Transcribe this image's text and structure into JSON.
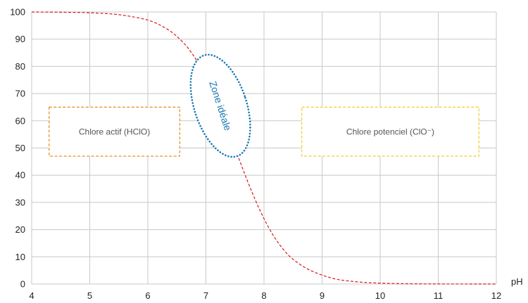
{
  "chart_data": {
    "type": "line",
    "xlabel": "pH",
    "ylabel": "",
    "xlim": [
      4,
      12
    ],
    "ylim": [
      0,
      100
    ],
    "x_ticks": [
      4,
      5,
      6,
      7,
      8,
      9,
      10,
      11,
      12
    ],
    "y_ticks": [
      0,
      10,
      20,
      30,
      40,
      50,
      60,
      70,
      80,
      90,
      100
    ],
    "grid": true,
    "series": [
      {
        "color": "#d7191c",
        "line_style": "dashed",
        "x": [
          4,
          4.5,
          5,
          5.5,
          6,
          6.3,
          6.5,
          6.7,
          6.9,
          7.1,
          7.3,
          7.5,
          7.7,
          7.9,
          8.1,
          8.3,
          8.5,
          8.8,
          9.2,
          9.6,
          10,
          10.5,
          11,
          11.5,
          12
        ],
        "values": [
          99.97,
          99.9,
          99.7,
          99.0,
          97.0,
          94.1,
          91.0,
          86.5,
          80.0,
          71.7,
          61.3,
          50.0,
          38.7,
          28.5,
          20.0,
          13.6,
          9.1,
          5.0,
          2.0,
          0.8,
          0.32,
          0.1,
          0.03,
          0.01,
          0.003
        ]
      }
    ],
    "annotations": [
      {
        "id": "hclo",
        "text": "Chlore actif (HClO)",
        "color": "#e8912e",
        "x0": 4.3,
        "x1": 6.55,
        "y0": 47,
        "y1": 65
      },
      {
        "id": "clo",
        "text": "Chlore potenciel (ClO⁻)",
        "color": "#f2d230",
        "x0": 8.65,
        "x1": 11.7,
        "y0": 47,
        "y1": 65
      },
      {
        "id": "zone",
        "text": "Zone idéale",
        "color": "#1a78b4",
        "cx": 7.25,
        "cy": 65.5,
        "rx_data": 0.45,
        "ry_data": 19.5,
        "angle": -18
      }
    ]
  }
}
